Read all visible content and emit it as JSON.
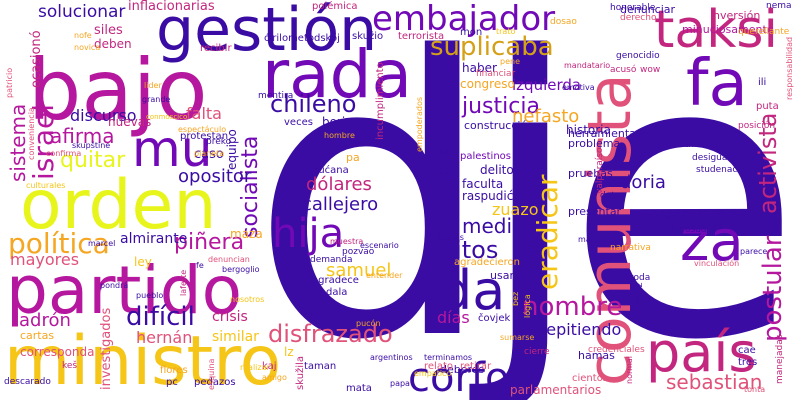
{
  "words": [
    {
      "text": "dje",
      "color": "#3a0ca3"
    },
    {
      "text": "ministro",
      "color": "#f5c518"
    },
    {
      "text": "partido",
      "color": "#b5179e"
    },
    {
      "text": "orden",
      "color": "#e8f51c"
    },
    {
      "text": "bajo",
      "color": "#b5179e"
    },
    {
      "text": "gestión",
      "color": "#3a0ca3"
    },
    {
      "text": "rada",
      "color": "#7209b7"
    },
    {
      "text": "comunista",
      "color": "#e0527a"
    },
    {
      "text": "país",
      "color": "#c2267e"
    },
    {
      "text": "fa",
      "color": "#7209b7"
    },
    {
      "text": "taksi",
      "color": "#c2267e"
    },
    {
      "text": "mu",
      "color": "#7209b7"
    },
    {
      "text": "hija",
      "color": "#7209b7"
    },
    {
      "text": "za",
      "color": "#7209b7"
    },
    {
      "text": "da",
      "color": "#3a0ca3"
    },
    {
      "text": "corfo",
      "color": "#3a0ca3"
    },
    {
      "text": "embajador",
      "color": "#7209b7"
    },
    {
      "text": "israel",
      "color": "#b5179e"
    },
    {
      "text": "política",
      "color": "#f5a623"
    },
    {
      "text": "chileno",
      "color": "#3a0ca3"
    },
    {
      "text": "socialista",
      "color": "#7209b7"
    },
    {
      "text": "suplicaba",
      "color": "#d4a017"
    },
    {
      "text": "justicia",
      "color": "#7209b7"
    },
    {
      "text": "gritos",
      "color": "#3a0ca3"
    },
    {
      "text": "nombre",
      "color": "#b5179e"
    },
    {
      "text": "difícil",
      "color": "#3a0ca3"
    },
    {
      "text": "disfrazado",
      "color": "#e0527a"
    },
    {
      "text": "eradicar",
      "color": "#f5c518"
    },
    {
      "text": "postular",
      "color": "#b5179e"
    },
    {
      "text": "activista",
      "color": "#c2267e"
    },
    {
      "text": "implacable",
      "color": "#3a0ca3"
    },
    {
      "text": "sebastian",
      "color": "#e0527a"
    },
    {
      "text": "solucionar",
      "color": "#3a0ca3"
    },
    {
      "text": "inflacionarias",
      "color": "#c2267e"
    },
    {
      "text": "sistema",
      "color": "#b5179e"
    },
    {
      "text": "afirma",
      "color": "#b5179e"
    },
    {
      "text": "quitar",
      "color": "#e8f51c"
    },
    {
      "text": "piñera",
      "color": "#b5179e"
    },
    {
      "text": "mayores",
      "color": "#e0527a"
    },
    {
      "text": "ladrón",
      "color": "#b5179e"
    },
    {
      "text": "opositor",
      "color": "#3a0ca3"
    },
    {
      "text": "dólares",
      "color": "#c2267e"
    },
    {
      "text": "callejero",
      "color": "#3a0ca3"
    },
    {
      "text": "samuel",
      "color": "#f5c518"
    },
    {
      "text": "medina",
      "color": "#3a0ca3"
    },
    {
      "text": "zuazo",
      "color": "#f5c518"
    },
    {
      "text": "doria",
      "color": "#3a0ca3"
    },
    {
      "text": "izquierda",
      "color": "#7209b7"
    },
    {
      "text": "nefasto",
      "color": "#f5a623"
    },
    {
      "text": "repitiendo",
      "color": "#3a0ca3"
    },
    {
      "text": "falta",
      "color": "#e0527a"
    },
    {
      "text": "discurso",
      "color": "#3a0ca3"
    },
    {
      "text": "hernán",
      "color": "#e0527a"
    },
    {
      "text": "similar",
      "color": "#f5c518"
    },
    {
      "text": "crisis",
      "color": "#c2267e"
    },
    {
      "text": "ocasionó",
      "color": "#c2267e"
    },
    {
      "text": "días",
      "color": "#b5179e"
    },
    {
      "text": "congreso",
      "color": "#f5a623"
    },
    {
      "text": "historia",
      "color": "#3a0ca3"
    },
    {
      "text": "herramientas",
      "color": "#3a0ca3"
    },
    {
      "text": "construcción",
      "color": "#3a0ca3"
    },
    {
      "text": "talcahuano",
      "color": "#3a0ca3"
    },
    {
      "text": "boric",
      "color": "#3a0ca3"
    },
    {
      "text": "siles",
      "color": "#c2267e"
    },
    {
      "text": "deben",
      "color": "#c2267e"
    },
    {
      "text": "denunciar",
      "color": "#3a0ca3"
    },
    {
      "text": "inversión",
      "color": "#c2267e"
    },
    {
      "text": "minuciosamente",
      "color": "#b5179e"
    },
    {
      "text": "investigados",
      "color": "#e0527a"
    },
    {
      "text": "almirante",
      "color": "#3a0ca3"
    },
    {
      "text": "caso",
      "color": "#3a0ca3"
    },
    {
      "text": "equipo",
      "color": "#3a0ca3"
    },
    {
      "text": "nuevas",
      "color": "#c2267e"
    },
    {
      "text": "maza",
      "color": "#f5a623"
    },
    {
      "text": "ley",
      "color": "#f5c518"
    },
    {
      "text": "delitos",
      "color": "#3a0ca3"
    },
    {
      "text": "faculta",
      "color": "#3a0ca3"
    },
    {
      "text": "raspudiću",
      "color": "#3a0ca3"
    },
    {
      "text": "palestinos",
      "color": "#7209b7"
    },
    {
      "text": "problema",
      "color": "#3a0ca3"
    },
    {
      "text": "pruebas",
      "color": "#3a0ca3"
    },
    {
      "text": "presentar",
      "color": "#3a0ca3"
    },
    {
      "text": "usando",
      "color": "#3a0ca3"
    },
    {
      "text": "deberes",
      "color": "#3a0ca3"
    },
    {
      "text": "hamas",
      "color": "#3a0ca3"
    },
    {
      "text": "parlamentarios",
      "color": "#e0527a"
    },
    {
      "text": "lz",
      "color": "#f5c518"
    },
    {
      "text": "corresponda",
      "color": "#e0527a"
    },
    {
      "text": "cartas",
      "color": "#f5a623"
    },
    {
      "text": "pedazos",
      "color": "#3a0ca3"
    },
    {
      "text": "flores",
      "color": "#f5a623"
    },
    {
      "text": "pc",
      "color": "#3a0ca3"
    },
    {
      "text": "kaj",
      "color": "#c2267e"
    },
    {
      "text": "taman",
      "color": "#3a0ca3"
    },
    {
      "text": "mata",
      "color": "#3a0ca3"
    },
    {
      "text": "haber",
      "color": "#3a0ca3"
    },
    {
      "text": "mon",
      "color": "#3a0ca3"
    },
    {
      "text": "terrorista",
      "color": "#c2267e"
    },
    {
      "text": "skužio",
      "color": "#3a0ca3"
    },
    {
      "text": "ćirilometodskoj",
      "color": "#3a0ca3"
    },
    {
      "text": "recibir",
      "color": "#c2267e"
    },
    {
      "text": "polémica",
      "color": "#c2267e"
    },
    {
      "text": "protestan",
      "color": "#3a0ca3"
    },
    {
      "text": "mentira",
      "color": "#3a0ca3"
    },
    {
      "text": "veces",
      "color": "#3a0ca3"
    },
    {
      "text": "dućana",
      "color": "#3a0ca3"
    },
    {
      "text": "pa",
      "color": "#f5a623"
    },
    {
      "text": "agradece",
      "color": "#3a0ca3"
    },
    {
      "text": "dala",
      "color": "#3a0ca3"
    },
    {
      "text": "demanda",
      "color": "#3a0ca3"
    },
    {
      "text": "pozvao",
      "color": "#3a0ca3"
    },
    {
      "text": "skužila",
      "color": "#c2267e"
    },
    {
      "text": "agradecieron",
      "color": "#f5a623"
    },
    {
      "text": "bilo",
      "color": "#3a0ca3"
    },
    {
      "text": "čovjek",
      "color": "#3a0ca3"
    },
    {
      "text": "relato",
      "color": "#e0527a"
    },
    {
      "text": "retirar",
      "color": "#e0527a"
    },
    {
      "text": "cientos",
      "color": "#e0527a"
    },
    {
      "text": "financiar",
      "color": "#e0527a"
    },
    {
      "text": "emotiva",
      "color": "#3a0ca3"
    },
    {
      "text": "mandatario",
      "color": "#c2267e"
    },
    {
      "text": "genocidio",
      "color": "#3a0ca3"
    },
    {
      "text": "acusó",
      "color": "#c2267e"
    },
    {
      "text": "wow",
      "color": "#c2267e"
    },
    {
      "text": "ili",
      "color": "#3a0ca3"
    },
    {
      "text": "puta",
      "color": "#c2267e"
    },
    {
      "text": "posición",
      "color": "#c2267e"
    },
    {
      "text": "desigual",
      "color": "#3a0ca3"
    },
    {
      "text": "studenac",
      "color": "#3a0ca3"
    },
    {
      "text": "dato",
      "color": "#3a0ca3"
    },
    {
      "text": "nave",
      "color": "#3a0ca3"
    },
    {
      "text": "dalaposudila",
      "color": "#3a0ca3"
    },
    {
      "text": "magnitud",
      "color": "#3a0ca3"
    },
    {
      "text": "parece",
      "color": "#3a0ca3"
    },
    {
      "text": "vinculación",
      "color": "#e0527a"
    },
    {
      "text": "narrativa",
      "color": "#f5a623"
    },
    {
      "text": "toda",
      "color": "#3a0ca3"
    },
    {
      "text": "cae",
      "color": "#3a0ca3"
    },
    {
      "text": "tres",
      "color": "#3a0ca3"
    },
    {
      "text": "credenciales",
      "color": "#e0527a"
    },
    {
      "text": "cierre",
      "color": "#c2267e"
    },
    {
      "text": "prijevoz",
      "color": "#3a0ca3"
    },
    {
      "text": "manejadas",
      "color": "#c2267e"
    },
    {
      "text": "honorable",
      "color": "#3a0ca3"
    },
    {
      "text": "nema",
      "color": "#3a0ca3"
    },
    {
      "text": "derecho",
      "color": "#e0527a"
    },
    {
      "text": "querellante",
      "color": "#f5a623"
    },
    {
      "text": "responsabilidad",
      "color": "#e0527a"
    },
    {
      "text": "dosao",
      "color": "#f5a623"
    },
    {
      "text": "pene",
      "color": "#f5a623"
    },
    {
      "text": "trato",
      "color": "#f5c518"
    },
    {
      "text": "patricio",
      "color": "#e0527a"
    },
    {
      "text": "nofe",
      "color": "#f5a623"
    },
    {
      "text": "novica",
      "color": "#f5a623"
    },
    {
      "text": "conveniencia",
      "color": "#e0527a"
    },
    {
      "text": "lider",
      "color": "#f5a623"
    },
    {
      "text": "grande",
      "color": "#3a0ca3"
    },
    {
      "text": "espectáculo",
      "color": "#f5a623"
    },
    {
      "text": "conmoscico",
      "color": "#f5c518"
    },
    {
      "text": "preko",
      "color": "#3a0ca3"
    },
    {
      "text": "skupštine",
      "color": "#3a0ca3"
    },
    {
      "text": "confirma",
      "color": "#e0527a"
    },
    {
      "text": "planeta",
      "color": "#f5a623"
    },
    {
      "text": "culturales",
      "color": "#f5c518"
    },
    {
      "text": "marcel",
      "color": "#3a0ca3"
    },
    {
      "text": "denuncian",
      "color": "#e0527a"
    },
    {
      "text": "bergoglio",
      "color": "#3a0ca3"
    },
    {
      "text": "pondrá",
      "color": "#3a0ca3"
    },
    {
      "text": "pueblo",
      "color": "#3a0ca3"
    },
    {
      "text": "laferte",
      "color": "#c2267e"
    },
    {
      "text": "fe",
      "color": "#3a0ca3"
    },
    {
      "text": "esquina",
      "color": "#e0527a"
    },
    {
      "text": "descarado",
      "color": "#3a0ca3"
    },
    {
      "text": "keš",
      "color": "#c2267e"
    },
    {
      "text": "amigo",
      "color": "#f5a623"
    },
    {
      "text": "hombre",
      "color": "#f5a623"
    },
    {
      "text": "muestra",
      "color": "#c2267e"
    },
    {
      "text": "escenario",
      "color": "#3a0ca3"
    },
    {
      "text": "entender",
      "color": "#f5a623"
    },
    {
      "text": "artistas",
      "color": "#3a0ca3"
    },
    {
      "text": "argentinos",
      "color": "#3a0ca3"
    },
    {
      "text": "terminamos",
      "color": "#3a0ca3"
    },
    {
      "text": "papa",
      "color": "#3a0ca3"
    },
    {
      "text": "pucón",
      "color": "#f5a623"
    },
    {
      "text": "empatico",
      "color": "#f5c518"
    },
    {
      "text": "normal",
      "color": "#c2267e"
    },
    {
      "text": "sumarse",
      "color": "#f5a623"
    },
    {
      "text": "bez",
      "color": "#f5c518"
    },
    {
      "text": "lógica",
      "color": "#f5c518"
    },
    {
      "text": "kad",
      "color": "#3a0ca3"
    },
    {
      "text": "valparaíso",
      "color": "#c2267e"
    },
    {
      "text": "incumplimiento",
      "color": "#c2267e"
    },
    {
      "text": "empoderados",
      "color": "#f5a623"
    },
    {
      "text": "nosotros",
      "color": "#f5c518"
    },
    {
      "text": "tonta",
      "color": "#e0527a"
    },
    {
      "text": "realizar",
      "color": "#f5c518"
    }
  ]
}
